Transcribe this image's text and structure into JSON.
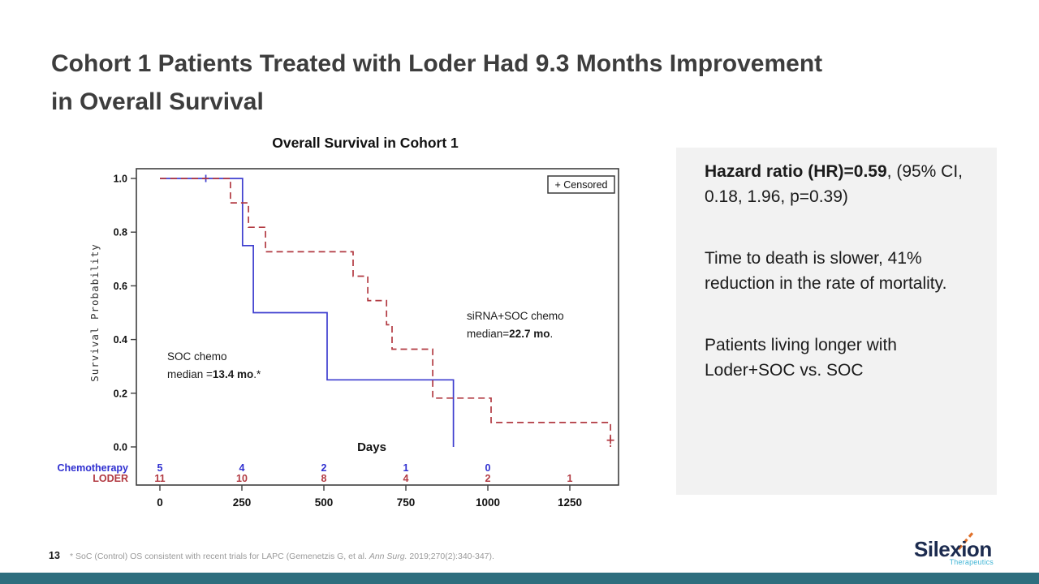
{
  "slide": {
    "title_line1": "Cohort 1 Patients Treated with Loder Had 9.3 Months Improvement",
    "title_line2": "in Overall Survival"
  },
  "chart_data": {
    "type": "line",
    "subtype": "kaplan-meier-step",
    "title": "Overall Survival in Cohort 1",
    "xlabel": "Days",
    "ylabel": "Survival Probability",
    "xlim": [
      0,
      1400
    ],
    "ylim": [
      0,
      1
    ],
    "xticks": [
      0,
      250,
      500,
      750,
      1000,
      1250
    ],
    "yticks": [
      0,
      0.2,
      0.4,
      0.6,
      0.8,
      1
    ],
    "grid": false,
    "legend_label": "+ Censored",
    "legend_position": "top-right",
    "series": [
      {
        "name": "Chemotherapy (SOC chemo)",
        "color": "#3e3ecf",
        "style": "solid",
        "steps": [
          [
            0,
            1.0
          ],
          [
            252,
            1.0
          ],
          [
            252,
            0.75
          ],
          [
            285,
            0.75
          ],
          [
            285,
            0.5
          ],
          [
            510,
            0.5
          ],
          [
            510,
            0.25
          ],
          [
            895,
            0.25
          ],
          [
            895,
            0.0
          ]
        ],
        "censors": [
          [
            140,
            1.0
          ]
        ]
      },
      {
        "name": "LODER (siRNA+SOC chemo)",
        "color": "#b23a42",
        "style": "dashed",
        "steps": [
          [
            0,
            1.0
          ],
          [
            215,
            1.0
          ],
          [
            215,
            0.909
          ],
          [
            270,
            0.909
          ],
          [
            270,
            0.818
          ],
          [
            322,
            0.818
          ],
          [
            322,
            0.727
          ],
          [
            589,
            0.727
          ],
          [
            589,
            0.636
          ],
          [
            634,
            0.636
          ],
          [
            634,
            0.545
          ],
          [
            691,
            0.545
          ],
          [
            691,
            0.455
          ],
          [
            708,
            0.455
          ],
          [
            708,
            0.364
          ],
          [
            832,
            0.364
          ],
          [
            832,
            0.182
          ],
          [
            1010,
            0.182
          ],
          [
            1010,
            0.091
          ],
          [
            1374,
            0.091
          ],
          [
            1374,
            0.0
          ]
        ],
        "censors": [
          [
            1374,
            0.025
          ]
        ]
      }
    ],
    "annotations": [
      {
        "x": 206,
        "y": 444,
        "line_height": 22,
        "lines": [
          [
            {
              "t": "SOC chemo"
            }
          ],
          [
            {
              "t": "median ="
            },
            {
              "t": "13.4 mo",
              "b": true
            },
            {
              "t": ".*"
            }
          ]
        ]
      },
      {
        "x": 575,
        "y": 394,
        "line_height": 22,
        "lines": [
          [
            {
              "t": "siRNA+SOC chemo"
            }
          ],
          [
            {
              "t": "median="
            },
            {
              "t": "22.7 mo",
              "b": true
            },
            {
              "t": "."
            }
          ]
        ]
      }
    ],
    "at_risk": {
      "x_positions_days": [
        0,
        250,
        500,
        750,
        1000,
        1250
      ],
      "rows": [
        {
          "label": "Chemotherapy",
          "color": "#2f2fd0",
          "values": [
            "5",
            "4",
            "2",
            "1",
            "0"
          ]
        },
        {
          "label": "LODER",
          "color": "#b23a42",
          "values": [
            "11",
            "10",
            "8",
            "4",
            "2",
            "1"
          ]
        }
      ]
    }
  },
  "panel": {
    "background": "#f2f2f2",
    "paragraphs": [
      [
        {
          "t": "Hazard ratio (HR)=0.59",
          "b": true
        },
        {
          "t": ", (95% CI, 0.18, 1.96, p=0.39)"
        }
      ],
      [
        {
          "t": "Time to death is slower, 41% reduction in the rate of mortality."
        }
      ],
      [
        {
          "t": "Patients living longer with Loder+SOC vs. SOC"
        }
      ]
    ]
  },
  "footer": {
    "page_number": "13",
    "citation_segments": [
      {
        "t": "* SoC (Control) OS consistent with recent trials for LAPC (Gemenetzis G, et al. "
      },
      {
        "t": "Ann Surg.",
        "i": true
      },
      {
        "t": " 2019;270(2):340-347)."
      }
    ]
  },
  "logo": {
    "name": "Silexion",
    "tagline": "Therapeutics",
    "name_color": "#1c2b4f",
    "tagline_color": "#43b6d6",
    "accent_color": "#e0722c"
  },
  "colors": {
    "accent_bar": "#2e6e7e",
    "title_text": "#3d3d3d",
    "axis": "#3f3f3f"
  }
}
